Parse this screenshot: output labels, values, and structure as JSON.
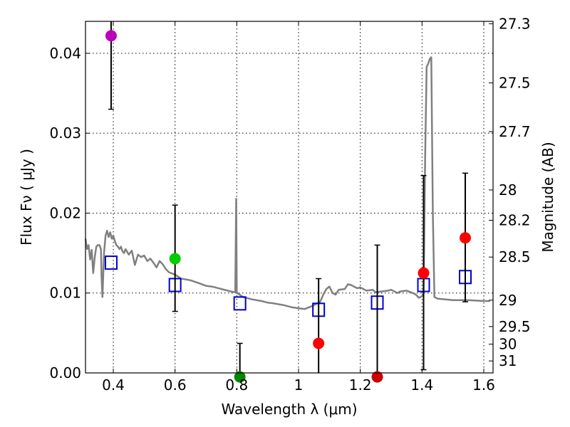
{
  "chart_data": {
    "type": "scatter",
    "xlabel": "Wavelength  λ (μm)",
    "ylabel": "Flux  Fν  ( μJy )",
    "ylabel_right": "Magnitude (AB)",
    "xlim": [
      0.31,
      1.63
    ],
    "ylim": [
      0.0,
      0.044
    ],
    "x_ticks": [
      0.4,
      0.6,
      0.8,
      1.0,
      1.2,
      1.4,
      1.6
    ],
    "x_tick_labels": [
      "0.4",
      "0.6",
      "0.8",
      "1",
      "1.2",
      "1.4",
      "1.6"
    ],
    "y_ticks": [
      0.0,
      0.01,
      0.02,
      0.03,
      0.04
    ],
    "y_tick_labels": [
      "0.00",
      "0.01",
      "0.02",
      "0.03",
      "0.04"
    ],
    "mag_ticks": [
      {
        "label": "27.3",
        "flux": 0.0437
      },
      {
        "label": "27.5",
        "flux": 0.0363
      },
      {
        "label": "27.7",
        "flux": 0.0302
      },
      {
        "label": "28",
        "flux": 0.0229
      },
      {
        "label": "28.2",
        "flux": 0.0191
      },
      {
        "label": "28.5",
        "flux": 0.0145
      },
      {
        "label": "29",
        "flux": 0.0091
      },
      {
        "label": "29.5",
        "flux": 0.0058
      },
      {
        "label": "30",
        "flux": 0.0036
      },
      {
        "label": "31",
        "flux": 0.0015
      }
    ],
    "observed": [
      {
        "x": 0.393,
        "y": 0.0422,
        "err": [
          0.033,
          0.0445
        ],
        "color": "#bb00bb"
      },
      {
        "x": 0.6,
        "y": 0.0143,
        "err": [
          0.0077,
          0.021
        ],
        "color": "#00cc00"
      },
      {
        "x": 0.81,
        "y": -0.0005,
        "err": [
          0.0,
          0.0037
        ],
        "color": "#008800"
      },
      {
        "x": 1.065,
        "y": 0.0037,
        "err": [
          0.0,
          0.0118
        ],
        "color": "#ff0000"
      },
      {
        "x": 1.255,
        "y": -0.0005,
        "err": [
          0.0,
          0.016
        ],
        "color": "#cc0000"
      },
      {
        "x": 1.405,
        "y": 0.0125,
        "err": [
          0.0004,
          0.0247
        ],
        "color": "#ff0000"
      },
      {
        "x": 1.54,
        "y": 0.0169,
        "err": [
          0.0089,
          0.025
        ],
        "color": "#ff0000"
      }
    ],
    "model_bands": [
      {
        "x": 0.393,
        "y": 0.0138
      },
      {
        "x": 0.6,
        "y": 0.011
      },
      {
        "x": 0.81,
        "y": 0.0087
      },
      {
        "x": 1.065,
        "y": 0.0079
      },
      {
        "x": 1.255,
        "y": 0.0088
      },
      {
        "x": 1.405,
        "y": 0.011
      },
      {
        "x": 1.54,
        "y": 0.012
      }
    ],
    "model_spectrum": {
      "x": [
        0.31,
        0.315,
        0.32,
        0.325,
        0.33,
        0.335,
        0.34,
        0.345,
        0.35,
        0.355,
        0.36,
        0.362,
        0.365,
        0.37,
        0.375,
        0.38,
        0.385,
        0.39,
        0.395,
        0.4,
        0.405,
        0.41,
        0.415,
        0.42,
        0.425,
        0.43,
        0.435,
        0.44,
        0.45,
        0.46,
        0.47,
        0.48,
        0.49,
        0.5,
        0.51,
        0.52,
        0.53,
        0.54,
        0.55,
        0.56,
        0.57,
        0.58,
        0.6,
        0.62,
        0.65,
        0.68,
        0.7,
        0.72,
        0.75,
        0.78,
        0.795,
        0.798,
        0.8,
        0.802,
        0.805,
        0.82,
        0.85,
        0.88,
        0.9,
        0.92,
        0.95,
        0.98,
        1.0,
        1.02,
        1.04,
        1.05,
        1.07,
        1.08,
        1.09,
        1.1,
        1.11,
        1.12,
        1.13,
        1.15,
        1.16,
        1.17,
        1.19,
        1.2,
        1.22,
        1.24,
        1.25,
        1.27,
        1.29,
        1.3,
        1.32,
        1.33,
        1.35,
        1.37,
        1.38,
        1.39,
        1.4,
        1.405,
        1.41,
        1.415,
        1.42,
        1.425,
        1.43,
        1.435,
        1.44,
        1.45,
        1.5,
        1.55,
        1.6,
        1.62
      ],
      "y": [
        0.0168,
        0.0155,
        0.016,
        0.0142,
        0.0154,
        0.0125,
        0.0145,
        0.0158,
        0.016,
        0.016,
        0.0155,
        0.012,
        0.0095,
        0.015,
        0.0172,
        0.0178,
        0.017,
        0.0176,
        0.0168,
        0.0172,
        0.0165,
        0.016,
        0.0158,
        0.0155,
        0.0158,
        0.0152,
        0.015,
        0.0155,
        0.0148,
        0.0153,
        0.0135,
        0.0148,
        0.0145,
        0.0147,
        0.014,
        0.0143,
        0.0138,
        0.0132,
        0.014,
        0.0136,
        0.013,
        0.0126,
        0.0123,
        0.0118,
        0.0116,
        0.0112,
        0.0109,
        0.0108,
        0.0105,
        0.0102,
        0.0101,
        0.0218,
        0.01,
        0.01,
        0.0099,
        0.0095,
        0.0092,
        0.009,
        0.0088,
        0.0087,
        0.0085,
        0.0082,
        0.0081,
        0.008,
        0.0083,
        0.0085,
        0.0089,
        0.0098,
        0.0105,
        0.0108,
        0.01,
        0.0098,
        0.0104,
        0.0105,
        0.0111,
        0.011,
        0.0106,
        0.0107,
        0.0103,
        0.0104,
        0.0101,
        0.0102,
        0.0103,
        0.0104,
        0.01,
        0.0102,
        0.0103,
        0.01,
        0.0098,
        0.0094,
        0.0096,
        0.01,
        0.027,
        0.0383,
        0.0387,
        0.0393,
        0.0395,
        0.02,
        0.0095,
        0.0093,
        0.0091,
        0.0091,
        0.009,
        0.009
      ]
    }
  }
}
